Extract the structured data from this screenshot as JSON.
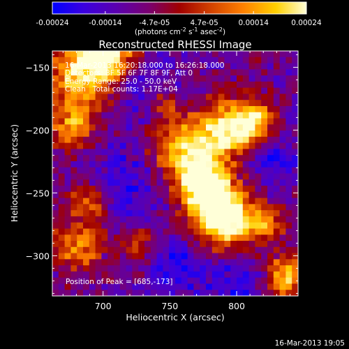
{
  "colorbar": {
    "tick_labels": [
      "-0.00024",
      "-0.00014",
      "-4.7e-05",
      "4.7e-05",
      "0.00014",
      "0.00024"
    ],
    "tick_values": [
      -0.00024,
      -0.00014,
      -4.7e-05,
      4.7e-05,
      0.00014,
      0.00024
    ],
    "range": [
      -0.00024,
      0.00024
    ],
    "units": "(photons cm",
    "units_parts": [
      "(photons cm",
      "-2",
      " s",
      "-1",
      " asec",
      "-2",
      ")"
    ],
    "colormap": [
      "#0000ff",
      "#3a00e0",
      "#5a00b0",
      "#7a0070",
      "#a00000",
      "#d04000",
      "#ff8000",
      "#ffd000",
      "#ffffd8"
    ]
  },
  "chart_data": {
    "type": "heatmap",
    "title": "Reconstructed RHESSI Image",
    "xlabel": "Heliocentric X (arcsec)",
    "ylabel": "Heliocentric Y (arcsec)",
    "xlim": [
      662,
      846
    ],
    "ylim": [
      -332,
      -137
    ],
    "xticks": [
      700,
      750,
      800
    ],
    "xtick_labels": [
      "700",
      "750",
      "800"
    ],
    "yticks": [
      -150,
      -200,
      -250,
      -300
    ],
    "ytick_labels": [
      "-150",
      "-200",
      "-250",
      "-300"
    ],
    "grid": false,
    "info_lines": [
      "16-Mar-2013 16:20:18.000 to 16:26:18.000",
      "Detectors: 3F 5F 6F 7F 8F 9F, Att 0",
      "Energy Range: 25.0 - 50.0 keV",
      "Clean   Total counts: 1.17E+04"
    ],
    "peak_label": "Position of Peak = [685,-173]",
    "peak": [
      685,
      -173
    ]
  },
  "footer": {
    "timestamp": "16-Mar-2013 19:05"
  }
}
